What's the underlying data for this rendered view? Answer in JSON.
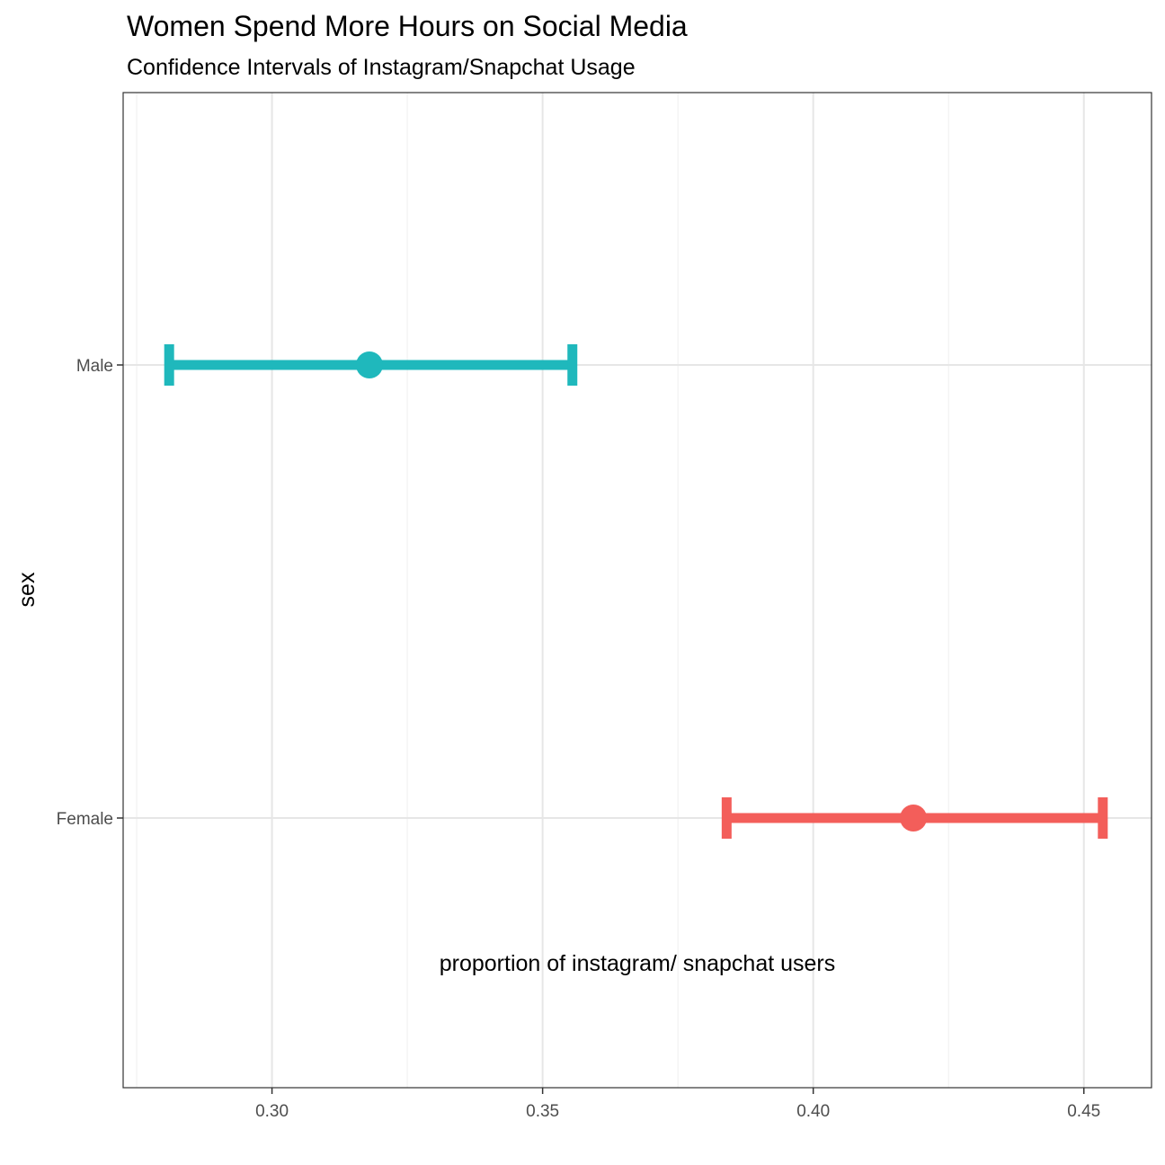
{
  "chart_data": {
    "type": "errorbar",
    "title": "Women Spend More Hours on Social Media",
    "subtitle": "Confidence Intervals of Instagram/Snapchat Usage",
    "xlabel": "proportion of instagram/ snapchat users",
    "ylabel": "sex",
    "xlim": [
      0.2725,
      0.4625
    ],
    "x_ticks": [
      0.3,
      0.35,
      0.4,
      0.45
    ],
    "x_tick_labels": [
      "0.30",
      "0.35",
      "0.40",
      "0.45"
    ],
    "categories": [
      "Female",
      "Male"
    ],
    "grid": true,
    "legend": "none",
    "series": [
      {
        "category": "Male",
        "estimate": 0.318,
        "lower": 0.281,
        "upper": 0.3555,
        "color": "#1FB8BC"
      },
      {
        "category": "Female",
        "estimate": 0.4185,
        "lower": 0.384,
        "upper": 0.4535,
        "color": "#F35E5A"
      }
    ]
  }
}
